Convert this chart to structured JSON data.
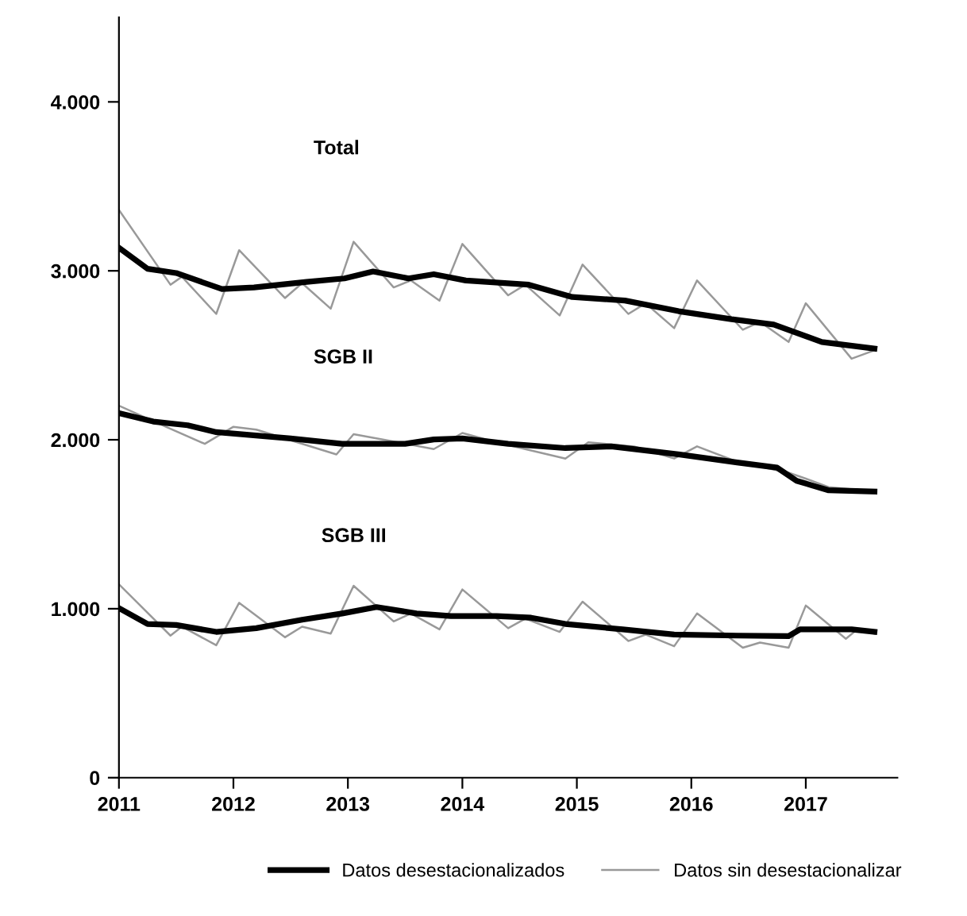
{
  "chart_data": {
    "type": "line",
    "annotations": [
      "Total",
      "SGB II",
      "SGB III"
    ],
    "xlim": [
      2011,
      2017.8
    ],
    "xticks": [
      2011,
      2012,
      2013,
      2014,
      2015,
      2016,
      2017
    ],
    "ylim": [
      0,
      4500
    ],
    "yticks": [
      0,
      {
        "value": 1000,
        "label": "1.000"
      },
      {
        "value": 2000,
        "label": "2.000"
      },
      {
        "value": 3000,
        "label": "3.000"
      },
      {
        "value": 4000,
        "label": "4.000"
      }
    ],
    "grid": false,
    "legend": "bottom",
    "marker": "none",
    "line_style": "solid",
    "series": [
      {
        "name": "Datos desestacionalizados",
        "color": "#000000",
        "x": [
          2011.0,
          2011.25,
          2011.5,
          2011.9,
          2012.18,
          2012.64,
          2012.97,
          2013.22,
          2013.53,
          2013.75,
          2014.03,
          2014.58,
          2014.96,
          2015.42,
          2015.89,
          2016.35,
          2016.72,
          2017.14,
          2017.6
        ],
        "values": [
          3137,
          3012,
          2987,
          2892,
          2902,
          2935,
          2955,
          2996,
          2955,
          2980,
          2943,
          2918,
          2845,
          2824,
          2761,
          2714,
          2682,
          2579,
          2540
        ]
      },
      {
        "color": "#000000",
        "x": [
          2011.0,
          2011.3,
          2011.6,
          2011.85,
          2012.5,
          2012.95,
          2013.5,
          2013.75,
          2014.0,
          2014.4,
          2014.9,
          2015.3,
          2015.9,
          2016.4,
          2016.75,
          2016.92,
          2017.2,
          2017.6
        ],
        "values": [
          2158,
          2108,
          2086,
          2045,
          2008,
          1976,
          1976,
          2002,
          2008,
          1976,
          1951,
          1961,
          1913,
          1866,
          1835,
          1757,
          1701,
          1694
        ]
      },
      {
        "color": "#000000",
        "x": [
          2011.0,
          2011.25,
          2011.5,
          2011.85,
          2012.2,
          2012.6,
          2012.95,
          2013.25,
          2013.6,
          2013.9,
          2014.3,
          2014.6,
          2014.9,
          2015.4,
          2015.85,
          2016.4,
          2016.85,
          2016.95,
          2017.4,
          2017.6
        ],
        "values": [
          1004,
          910,
          904,
          863,
          885,
          935,
          972,
          1010,
          972,
          957,
          957,
          947,
          910,
          878,
          847,
          841,
          838,
          878,
          878,
          863
        ]
      },
      {
        "name": "Datos sin desestacionalizar",
        "color": "#999999",
        "x": [
          2011.0,
          2011.45,
          2011.55,
          2011.85,
          2012.05,
          2012.45,
          2012.6,
          2012.85,
          2013.05,
          2013.4,
          2013.55,
          2013.8,
          2014.0,
          2014.4,
          2014.55,
          2014.85,
          2015.05,
          2015.45,
          2015.6,
          2015.85,
          2016.05,
          2016.45,
          2016.6,
          2016.85,
          2017.0,
          2017.4,
          2017.6
        ],
        "values": [
          3360,
          2918,
          2965,
          2745,
          3122,
          2839,
          2927,
          2776,
          3172,
          2902,
          2943,
          2824,
          3159,
          2855,
          2918,
          2736,
          3037,
          2745,
          2808,
          2661,
          2943,
          2651,
          2698,
          2579,
          2808,
          2480,
          2530
        ]
      },
      {
        "color": "#999999",
        "x": [
          2011.0,
          2011.3,
          2011.75,
          2012.0,
          2012.2,
          2012.9,
          2013.05,
          2013.4,
          2013.75,
          2014.0,
          2014.3,
          2014.9,
          2015.1,
          2015.5,
          2015.85,
          2016.05,
          2016.4,
          2016.85,
          2017.0,
          2017.2,
          2017.6
        ],
        "values": [
          2202,
          2110,
          1976,
          2077,
          2060,
          1913,
          2033,
          1990,
          1945,
          2040,
          1985,
          1889,
          1985,
          1960,
          1889,
          1961,
          1870,
          1805,
          1770,
          1720,
          1694
        ]
      },
      {
        "color": "#999999",
        "x": [
          2011.0,
          2011.45,
          2011.55,
          2011.85,
          2012.05,
          2012.45,
          2012.6,
          2012.85,
          2013.05,
          2013.4,
          2013.55,
          2013.8,
          2014.0,
          2014.4,
          2014.55,
          2014.85,
          2015.05,
          2015.45,
          2015.6,
          2015.85,
          2016.05,
          2016.45,
          2016.6,
          2016.85,
          2017.0,
          2017.35,
          2017.45,
          2017.6
        ],
        "values": [
          1145,
          841,
          894,
          784,
          1035,
          831,
          894,
          853,
          1136,
          925,
          972,
          878,
          1114,
          885,
          941,
          863,
          1042,
          809,
          847,
          778,
          972,
          769,
          800,
          769,
          1019,
          822,
          878,
          853
        ]
      }
    ]
  }
}
